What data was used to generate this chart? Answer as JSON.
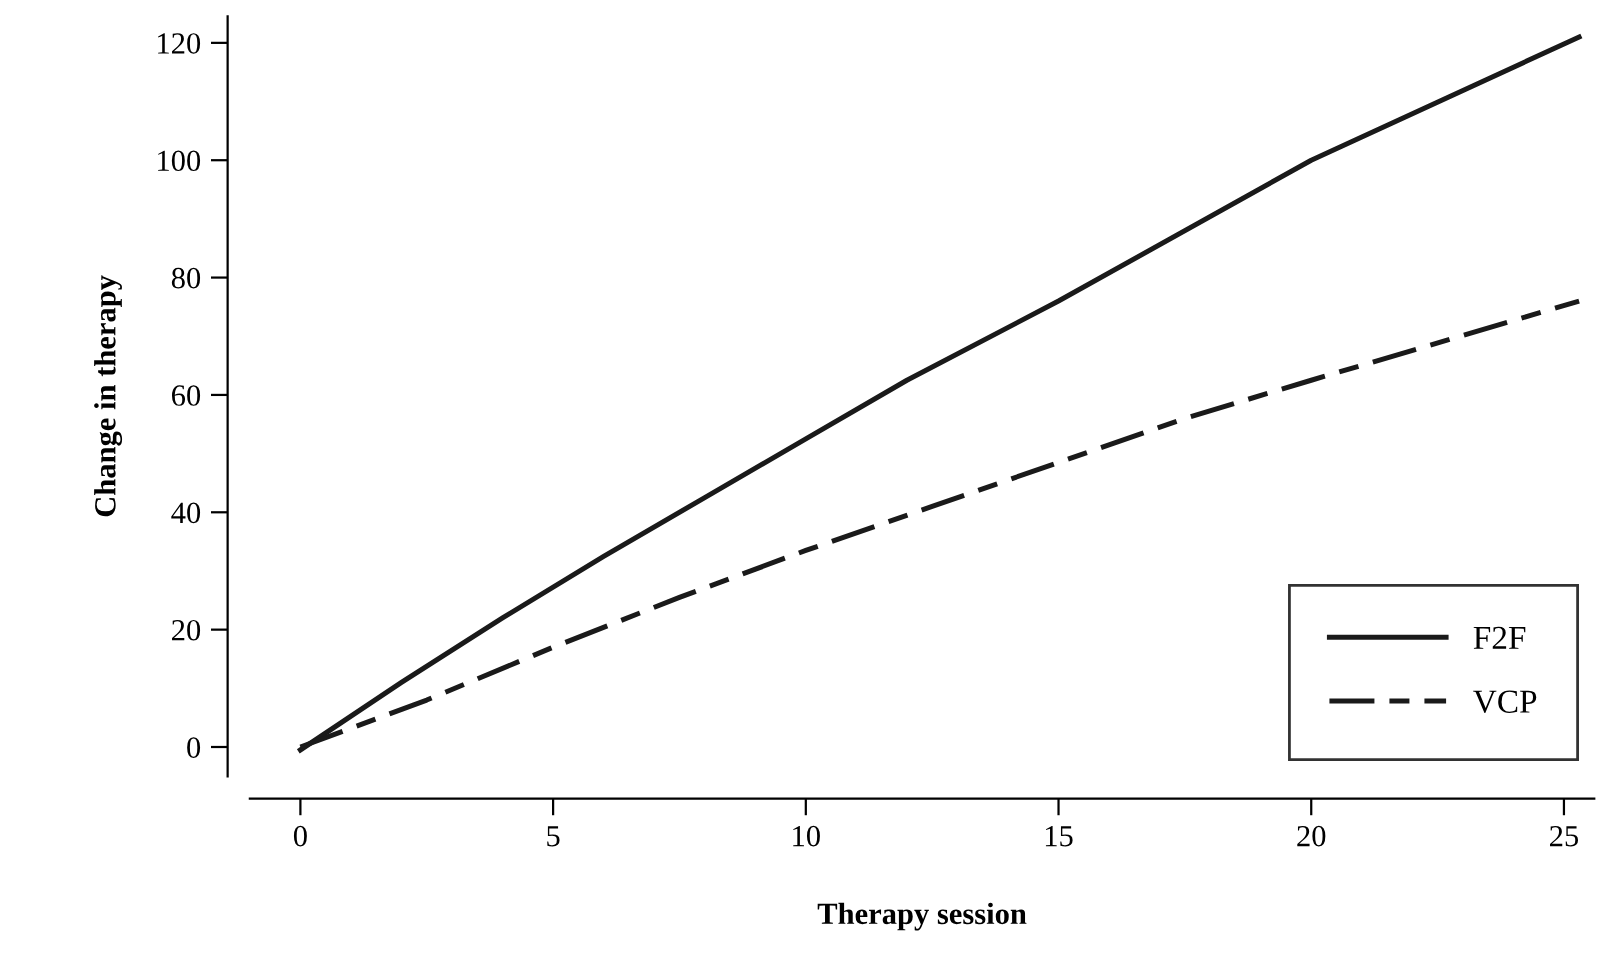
{
  "chart_data": {
    "type": "line",
    "xlabel": "Therapy session",
    "ylabel": "Change in therapy",
    "xlim": [
      -1,
      25.6
    ],
    "ylim": [
      -5,
      124.5
    ],
    "xticks": [
      0,
      5,
      10,
      15,
      20,
      25
    ],
    "yticks": [
      0,
      20,
      40,
      60,
      80,
      100,
      120
    ],
    "legend": "bottom right",
    "grid": false,
    "marker": "none",
    "series": [
      {
        "name": "F2F",
        "color": "#1a1a1a",
        "line_style": "solid",
        "x": [
          0,
          2,
          4,
          6,
          8,
          10,
          12,
          15,
          20,
          25.3
        ],
        "values": [
          -0.5,
          11,
          22,
          32.5,
          42.5,
          52.5,
          62.5,
          76,
          100,
          121
        ]
      },
      {
        "name": "VCP",
        "color": "#1a1a1a",
        "line_style": "dashed",
        "x": [
          0,
          2.5,
          5,
          7.5,
          10,
          12.5,
          15,
          17.5,
          20,
          25.3
        ],
        "values": [
          0,
          8,
          17,
          25.5,
          33.5,
          41,
          48.5,
          56,
          62.5,
          76
        ]
      }
    ]
  }
}
